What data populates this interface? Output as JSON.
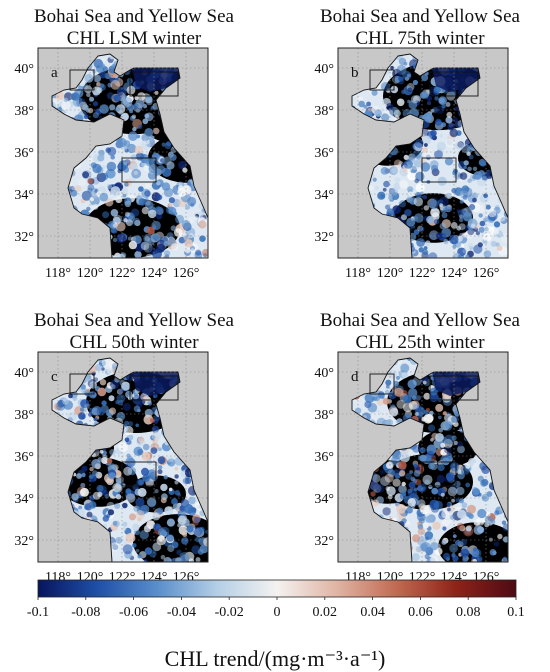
{
  "panels": [
    {
      "letter": "a",
      "title1": "Bohai Sea and Yellow Sea",
      "title2": "CHL LSM winter"
    },
    {
      "letter": "b",
      "title1": "Bohai Sea and Yellow Sea",
      "title2": "CHL 75th winter"
    },
    {
      "letter": "c",
      "title1": "Bohai Sea and Yellow Sea",
      "title2": "CHL 50th winter"
    },
    {
      "letter": "d",
      "title1": "Bohai Sea and Yellow Sea",
      "title2": "CHL 25th winter"
    }
  ],
  "lat_ticks": [
    "40°",
    "38°",
    "36°",
    "34°",
    "32°"
  ],
  "lon_ticks": [
    "118°",
    "120°",
    "122°",
    "124°",
    "126°"
  ],
  "colorbar": {
    "ticks": [
      "-0.1",
      "-0.08",
      "-0.06",
      "-0.04",
      "-0.02",
      "0",
      "0.02",
      "0.04",
      "0.06",
      "0.08",
      "0.1"
    ],
    "label": "CHL trend/(mg·m⁻³·a⁻¹)",
    "colors": [
      "#08155e",
      "#1f4fa8",
      "#5a8ecb",
      "#b4cfe6",
      "#f4f2f0",
      "#e0b4a4",
      "#c16a52",
      "#8e2318",
      "#4e0a14"
    ]
  },
  "colors": {
    "land": "#c8c8c8",
    "frame": "#222222",
    "grid": "#8a8a8a"
  }
}
